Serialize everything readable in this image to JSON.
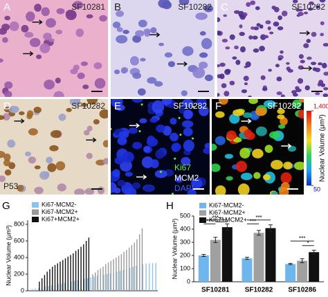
{
  "panels": [
    {
      "label": "A",
      "sample": "SF10281"
    },
    {
      "label": "B",
      "sample": "SF10282"
    },
    {
      "label": "C",
      "sample": "SF10282"
    },
    {
      "label": "D",
      "sample": "SF10282",
      "stain": "P53"
    },
    {
      "label": "E",
      "sample": "SF10282",
      "stains": [
        "Ki67",
        "MCM2",
        "DAPI"
      ]
    },
    {
      "label": "F",
      "sample": "SF10282",
      "colorbar": {
        "title": "Nuclear Volume (μm³)",
        "clim": [
          50,
          1400
        ],
        "cticks": [
          50,
          {
            "value": 1400,
            "label": "1,400"
          }
        ]
      }
    }
  ],
  "chart_data": [
    {
      "type": "bar",
      "label": "G",
      "ylabel": "Nuclear Volume (μm³)",
      "ylim": [
        0,
        850
      ],
      "yticks": [
        0,
        200,
        400,
        600,
        800
      ],
      "xlim": [
        0,
        100
      ],
      "series": [
        {
          "name": "Ki67-MCM2-",
          "color": "#8cc3ec",
          "x": [
            1,
            3.5,
            6,
            8.5,
            11,
            13.5,
            16,
            18.5,
            21,
            23.5,
            26,
            28.5,
            31,
            33.5,
            36,
            38.5,
            41,
            43.5,
            46,
            48.5,
            51,
            53.5,
            56,
            58.5,
            61,
            63.5,
            66,
            68.5,
            71,
            73.5,
            76,
            78.5,
            81,
            83.5,
            86,
            88.5,
            91,
            93.5,
            96,
            98.5
          ],
          "values": [
            12,
            20,
            28,
            35,
            42,
            50,
            58,
            65,
            72,
            80,
            88,
            95,
            104,
            112,
            120,
            128,
            136,
            145,
            152,
            160,
            170,
            178,
            186,
            195,
            204,
            212,
            220,
            230,
            240,
            250,
            262,
            275,
            288,
            300,
            312,
            320,
            326,
            330,
            332,
            335
          ]
        },
        {
          "name": "Ki67-MCM2+",
          "color": "#9a9a9a",
          "x": [
            50,
            52,
            54,
            56,
            58,
            60,
            62,
            64,
            66,
            68,
            70,
            72,
            74,
            76,
            78,
            80,
            82,
            84,
            86,
            88
          ],
          "values": [
            200,
            220,
            250,
            270,
            290,
            320,
            340,
            360,
            380,
            400,
            420,
            440,
            470,
            490,
            520,
            550,
            580,
            620,
            680,
            750
          ]
        },
        {
          "name": "Ki67+MCM2+",
          "color": "#111111",
          "x": [
            9,
            11,
            13,
            15,
            17,
            19,
            21,
            23,
            25,
            27,
            29,
            31,
            33,
            35,
            37,
            39,
            41,
            43,
            45,
            47
          ],
          "values": [
            110,
            150,
            190,
            230,
            260,
            290,
            310,
            330,
            350,
            370,
            390,
            410,
            430,
            450,
            480,
            500,
            530,
            560,
            600,
            640
          ]
        }
      ]
    },
    {
      "type": "bar",
      "label": "H",
      "ylabel": "Nuclear Volume (μm³)",
      "ylim": [
        0,
        500
      ],
      "yticks": [
        0,
        100,
        200,
        300,
        400,
        500
      ],
      "categories": [
        "SF10281",
        "SF10282",
        "SF10286"
      ],
      "series": [
        {
          "name": "Ki67-MCM2-",
          "color": "#6fb6ec",
          "values": [
            200,
            178,
            135
          ],
          "errors": [
            8,
            8,
            5
          ]
        },
        {
          "name": "Ki67-MCM2+",
          "color": "#a0a0a0",
          "values": [
            318,
            372,
            160
          ],
          "errors": [
            20,
            18,
            15
          ]
        },
        {
          "name": "Ki67+MCM2+",
          "color": "#111111",
          "values": [
            415,
            408,
            225
          ],
          "errors": [
            25,
            25,
            15
          ]
        }
      ],
      "annotations": [
        "***",
        "***",
        "**",
        "***",
        "***",
        "***",
        "*"
      ]
    }
  ]
}
